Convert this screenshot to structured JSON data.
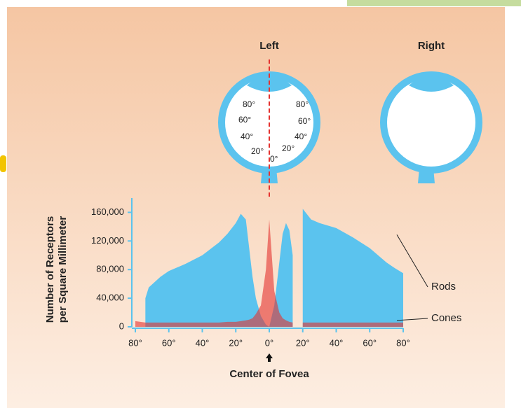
{
  "diagram": {
    "left_label": "Left",
    "right_label": "Right",
    "left_eye_angles": [
      "80°",
      "60°",
      "40°",
      "20°"
    ],
    "right_eye_angles": [
      "80°",
      "60°",
      "40°",
      "20°",
      "0°"
    ]
  },
  "chart_data": {
    "type": "area",
    "y_label": [
      "Number of Receptors",
      "per Square Millimeter"
    ],
    "x_label": "Center of Fovea",
    "x": [
      -80,
      -74,
      -72,
      -65,
      -60,
      -50,
      -40,
      -30,
      -25,
      -20,
      -17,
      -14,
      -12,
      -10,
      -8,
      -5,
      -2,
      0,
      3,
      6,
      8,
      10,
      12,
      14,
      15,
      19,
      20,
      25,
      30,
      40,
      50,
      60,
      70,
      75,
      80
    ],
    "series": [
      {
        "name": "Rods",
        "color": "#5bc3ee",
        "values": [
          null,
          40000,
          55000,
          70000,
          78000,
          88000,
          100000,
          118000,
          130000,
          145000,
          158000,
          150000,
          110000,
          70000,
          40000,
          15000,
          3000,
          0,
          30000,
          90000,
          130000,
          145000,
          135000,
          100000,
          null,
          null,
          165000,
          150000,
          145000,
          138000,
          125000,
          110000,
          90000,
          82000,
          75000
        ]
      },
      {
        "name": "Cones",
        "color": "#e5322f",
        "values": [
          8000,
          6000,
          6000,
          6000,
          6000,
          6000,
          6000,
          6000,
          7000,
          7000,
          8000,
          9000,
          10000,
          12000,
          18000,
          30000,
          80000,
          150000,
          50000,
          20000,
          12000,
          9000,
          7000,
          6000,
          null,
          null,
          6000,
          6000,
          6000,
          6000,
          6000,
          6000,
          6000,
          6000,
          6000
        ]
      }
    ],
    "xlim": [
      -80,
      80
    ],
    "xticks": [
      {
        "value": -80,
        "label": "80°"
      },
      {
        "value": -60,
        "label": "60°"
      },
      {
        "value": -40,
        "label": "40°"
      },
      {
        "value": -20,
        "label": "20°"
      },
      {
        "value": 0,
        "label": "0°"
      },
      {
        "value": 20,
        "label": "20°"
      },
      {
        "value": 40,
        "label": "40°"
      },
      {
        "value": 60,
        "label": "60°"
      },
      {
        "value": 80,
        "label": "80°"
      }
    ],
    "ylim": [
      0,
      180000
    ],
    "yticks": [
      0,
      {
        "value": 40000,
        "label": "40,000"
      },
      {
        "value": 80000,
        "label": "80,000"
      },
      {
        "value": 120000,
        "label": "120,000"
      },
      {
        "value": 160000,
        "label": "160,000"
      }
    ]
  }
}
